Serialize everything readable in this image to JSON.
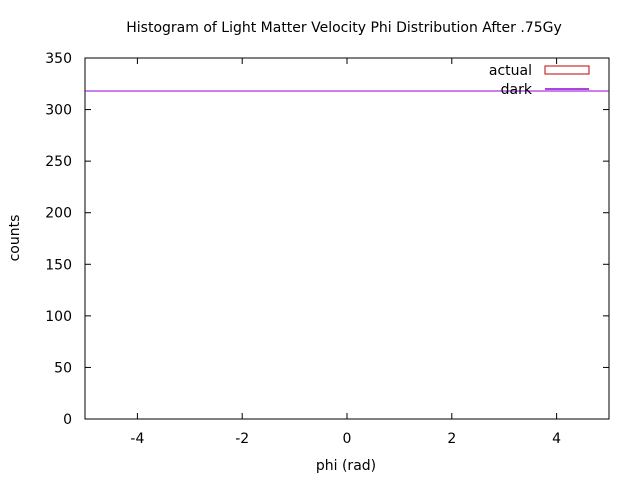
{
  "chart_data": {
    "type": "bar",
    "title": "Histogram of Light Matter Velocity Phi Distribution After .75Gy",
    "xlabel": "phi (rad)",
    "ylabel": "counts",
    "xlim": [
      -5,
      5
    ],
    "ylim": [
      0,
      350
    ],
    "x_ticks": [
      -4,
      -2,
      0,
      2,
      4
    ],
    "y_ticks": [
      0,
      50,
      100,
      150,
      200,
      250,
      300,
      350
    ],
    "x_tick_labels": [
      "-4",
      "-2",
      "0",
      "2",
      "4"
    ],
    "y_tick_labels": [
      "0",
      "50",
      "100",
      "150",
      "200",
      "250",
      "300",
      "350"
    ],
    "grid": false,
    "legend_position": "top-right",
    "series": [
      {
        "name": "actual",
        "kind": "histogram",
        "style": "empty-box",
        "color": "#c00000",
        "x": [],
        "values": []
      },
      {
        "name": "dark",
        "kind": "line",
        "color": "#9400d3",
        "x": [
          -5,
          5
        ],
        "values": [
          318,
          318
        ]
      }
    ]
  }
}
